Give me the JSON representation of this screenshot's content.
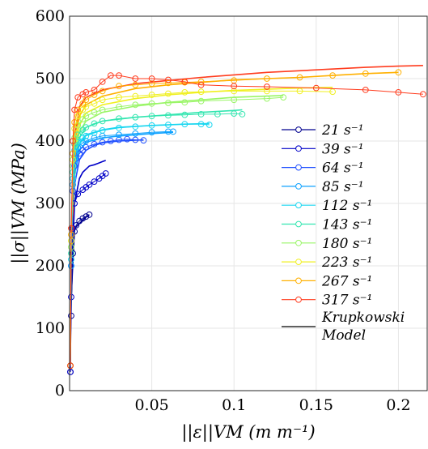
{
  "chart_data": {
    "type": "line",
    "xlabel": "||ε||VM (m m⁻¹)",
    "ylabel": "||σ||VM (MPa)",
    "xlim": [
      0,
      0.2175
    ],
    "ylim": [
      0,
      600
    ],
    "xticks": [
      "0.05",
      "0.1",
      "0.15",
      "0.2"
    ],
    "yticks": [
      "0",
      "100",
      "200",
      "300",
      "400",
      "500",
      "600"
    ],
    "xtick_values": [
      0.05,
      0.1,
      0.15,
      0.2
    ],
    "ytick_values": [
      0,
      100,
      200,
      300,
      400,
      500,
      600
    ],
    "grid": true,
    "legend_position": "right",
    "series": [
      {
        "name": "21 s⁻¹",
        "color": "#00008f",
        "markers": "circle",
        "x": [
          0.0005,
          0.001,
          0.002,
          0.003,
          0.004,
          0.006,
          0.008,
          0.01,
          0.012
        ],
        "y": [
          30,
          120,
          220,
          255,
          265,
          272,
          276,
          279,
          282
        ]
      },
      {
        "name": "39 s⁻¹",
        "color": "#0000c8",
        "markers": "circle",
        "x": [
          0.0005,
          0.001,
          0.002,
          0.003,
          0.005,
          0.008,
          0.01,
          0.012,
          0.015,
          0.018,
          0.02,
          0.022
        ],
        "y": [
          30,
          150,
          260,
          300,
          315,
          322,
          326,
          330,
          335,
          340,
          344,
          348
        ]
      },
      {
        "name": "64 s⁻¹",
        "color": "#1f4fff",
        "markers": "circle",
        "x": [
          0.0005,
          0.001,
          0.002,
          0.003,
          0.004,
          0.006,
          0.008,
          0.01,
          0.015,
          0.02,
          0.025,
          0.03,
          0.035,
          0.04,
          0.045
        ],
        "y": [
          40,
          200,
          320,
          360,
          372,
          380,
          385,
          390,
          395,
          398,
          400,
          402,
          403,
          402,
          401
        ]
      },
      {
        "name": "85 s⁻¹",
        "color": "#0ea2ff",
        "markers": "circle",
        "x": [
          0.0005,
          0.001,
          0.002,
          0.003,
          0.005,
          0.008,
          0.01,
          0.015,
          0.02,
          0.03,
          0.04,
          0.05,
          0.06,
          0.063
        ],
        "y": [
          40,
          200,
          330,
          375,
          390,
          397,
          400,
          405,
          408,
          410,
          412,
          414,
          415,
          415
        ]
      },
      {
        "name": "112 s⁻¹",
        "color": "#19d6f0",
        "markers": "circle",
        "x": [
          0.0005,
          0.001,
          0.002,
          0.003,
          0.005,
          0.008,
          0.01,
          0.015,
          0.02,
          0.03,
          0.04,
          0.05,
          0.06,
          0.07,
          0.08,
          0.085
        ],
        "y": [
          40,
          210,
          340,
          385,
          398,
          405,
          408,
          413,
          417,
          421,
          423,
          425,
          426,
          427,
          427,
          426
        ]
      },
      {
        "name": "143 s⁻¹",
        "color": "#33e6b0",
        "markers": "circle",
        "x": [
          0.0005,
          0.001,
          0.002,
          0.003,
          0.005,
          0.008,
          0.01,
          0.015,
          0.02,
          0.03,
          0.04,
          0.05,
          0.06,
          0.07,
          0.08,
          0.09,
          0.1,
          0.105
        ],
        "y": [
          40,
          220,
          350,
          395,
          410,
          418,
          422,
          428,
          432,
          436,
          438,
          440,
          441,
          442,
          443,
          443,
          444,
          443
        ]
      },
      {
        "name": "180 s⁻¹",
        "color": "#99f566",
        "markers": "circle",
        "x": [
          0.0005,
          0.001,
          0.002,
          0.003,
          0.005,
          0.008,
          0.01,
          0.015,
          0.02,
          0.03,
          0.04,
          0.05,
          0.06,
          0.07,
          0.08,
          0.1,
          0.12,
          0.13
        ],
        "y": [
          40,
          230,
          360,
          405,
          425,
          435,
          440,
          446,
          450,
          455,
          458,
          460,
          461,
          462,
          464,
          466,
          468,
          470
        ]
      },
      {
        "name": "223 s⁻¹",
        "color": "#f0f020",
        "markers": "circle",
        "x": [
          0.0005,
          0.001,
          0.002,
          0.003,
          0.005,
          0.008,
          0.01,
          0.015,
          0.02,
          0.03,
          0.04,
          0.05,
          0.06,
          0.07,
          0.08,
          0.1,
          0.12,
          0.14,
          0.16
        ],
        "y": [
          40,
          240,
          370,
          420,
          440,
          450,
          455,
          460,
          466,
          470,
          472,
          474,
          476,
          478,
          479,
          480,
          480,
          480,
          479
        ]
      },
      {
        "name": "267 s⁻¹",
        "color": "#ffb000",
        "markers": "circle",
        "x": [
          0.0005,
          0.001,
          0.002,
          0.003,
          0.005,
          0.008,
          0.01,
          0.015,
          0.02,
          0.03,
          0.04,
          0.05,
          0.06,
          0.07,
          0.08,
          0.1,
          0.12,
          0.14,
          0.16,
          0.18,
          0.2
        ],
        "y": [
          40,
          250,
          380,
          430,
          450,
          460,
          466,
          474,
          480,
          488,
          490,
          492,
          493,
          494,
          495,
          497,
          500,
          502,
          505,
          508,
          510
        ]
      },
      {
        "name": "317 s⁻¹",
        "color": "#ff3c1e",
        "markers": "circle",
        "x": [
          0.0005,
          0.001,
          0.002,
          0.003,
          0.005,
          0.008,
          0.01,
          0.015,
          0.02,
          0.025,
          0.03,
          0.04,
          0.05,
          0.06,
          0.07,
          0.08,
          0.1,
          0.12,
          0.15,
          0.18,
          0.2,
          0.215
        ],
        "y": [
          40,
          260,
          400,
          450,
          470,
          475,
          478,
          482,
          495,
          505,
          505,
          500,
          500,
          498,
          495,
          490,
          488,
          487,
          485,
          482,
          478,
          475
        ]
      }
    ],
    "model_series": [
      {
        "color": "#00008f",
        "x": [
          0.001,
          0.003,
          0.01,
          0.012
        ],
        "y": [
          150,
          260,
          278,
          282
        ]
      },
      {
        "color": "#0000c8",
        "x": [
          0.001,
          0.003,
          0.006,
          0.008,
          0.012,
          0.015,
          0.018,
          0.02,
          0.022
        ],
        "y": [
          150,
          300,
          340,
          350,
          360,
          362,
          365,
          367,
          369
        ]
      },
      {
        "color": "#1f4fff",
        "x": [
          0.001,
          0.003,
          0.006,
          0.01,
          0.015,
          0.02,
          0.03,
          0.045
        ],
        "y": [
          150,
          330,
          370,
          385,
          393,
          397,
          400,
          402
        ]
      },
      {
        "color": "#0ea2ff",
        "x": [
          0.001,
          0.003,
          0.006,
          0.01,
          0.02,
          0.03,
          0.04,
          0.05,
          0.063
        ],
        "y": [
          160,
          345,
          385,
          398,
          405,
          408,
          410,
          412,
          414
        ]
      },
      {
        "color": "#19d6f0",
        "x": [
          0.001,
          0.003,
          0.006,
          0.01,
          0.02,
          0.03,
          0.05,
          0.07,
          0.085
        ],
        "y": [
          165,
          355,
          395,
          410,
          418,
          422,
          425,
          427,
          428
        ]
      },
      {
        "color": "#33e6b0",
        "x": [
          0.001,
          0.003,
          0.006,
          0.01,
          0.02,
          0.04,
          0.06,
          0.08,
          0.1,
          0.105
        ],
        "y": [
          170,
          365,
          405,
          422,
          432,
          438,
          442,
          446,
          449,
          450
        ]
      },
      {
        "color": "#99f566",
        "x": [
          0.001,
          0.003,
          0.006,
          0.01,
          0.02,
          0.04,
          0.06,
          0.08,
          0.1,
          0.12,
          0.13
        ],
        "y": [
          175,
          375,
          415,
          432,
          446,
          456,
          462,
          466,
          470,
          472,
          473
        ]
      },
      {
        "color": "#f0f020",
        "x": [
          0.001,
          0.003,
          0.006,
          0.01,
          0.02,
          0.04,
          0.06,
          0.08,
          0.1,
          0.12,
          0.14,
          0.16
        ],
        "y": [
          180,
          385,
          425,
          445,
          458,
          468,
          474,
          478,
          481,
          483,
          485,
          486
        ]
      },
      {
        "color": "#ffb000",
        "x": [
          0.001,
          0.003,
          0.006,
          0.01,
          0.02,
          0.04,
          0.06,
          0.08,
          0.1,
          0.12,
          0.14,
          0.16,
          0.18,
          0.2
        ],
        "y": [
          185,
          395,
          440,
          458,
          472,
          484,
          490,
          494,
          498,
          500,
          502,
          505,
          508,
          510
        ]
      },
      {
        "color": "#ff3c1e",
        "x": [
          0.001,
          0.003,
          0.006,
          0.01,
          0.02,
          0.04,
          0.06,
          0.08,
          0.1,
          0.12,
          0.15,
          0.18,
          0.2,
          0.215
        ],
        "y": [
          190,
          405,
          455,
          470,
          482,
          492,
          497,
          502,
          506,
          510,
          514,
          518,
          520,
          521
        ]
      }
    ],
    "model_label": [
      "Krupkowski",
      "Model"
    ]
  }
}
